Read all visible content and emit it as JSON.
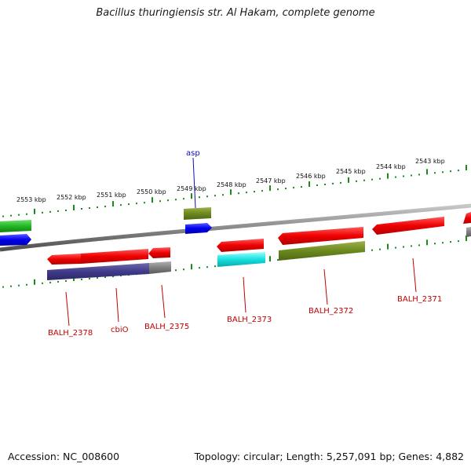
{
  "title": "Bacillus thuringiensis str. Al Hakam, complete genome",
  "footer": {
    "accession": "Accession: NC_008600",
    "topology": "Topology: circular; Length: 5,257,091 bp; Genes: 4,882"
  },
  "colors": {
    "tick": "#1a8a1a",
    "label_red": "#c00000",
    "label_blue": "#1010b0",
    "backbone": "#808080"
  },
  "scale_labels": [
    "2553 kbp",
    "2552 kbp",
    "2551 kbp",
    "2550 kbp",
    "2549 kbp",
    "2548 kbp",
    "2547 kbp",
    "2546 kbp",
    "2545 kbp",
    "2544 kbp",
    "2543 kbp"
  ],
  "gene_labels": [
    "asp",
    "BALH_2378",
    "cbiO",
    "BALH_2375",
    "BALH_2373",
    "BALH_2372",
    "BALH_2371"
  ]
}
